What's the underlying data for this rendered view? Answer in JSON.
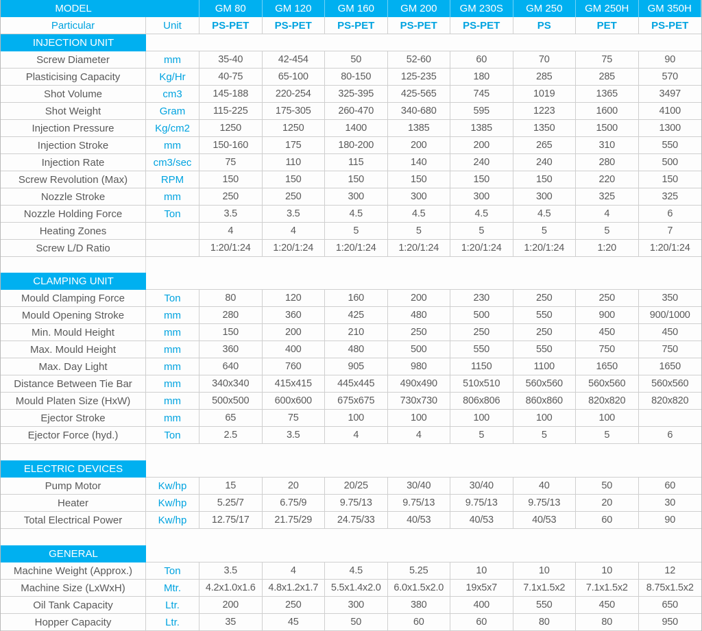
{
  "colors": {
    "accent_cyan": "#00b0f0",
    "cyan_text": "#00a3e0",
    "body_text": "#595959",
    "grid_line": "#cfcfcf"
  },
  "header": {
    "model_label": "MODEL",
    "models": [
      "GM 80",
      "GM 120",
      "GM 160",
      "GM 200",
      "GM 230S",
      "GM 250",
      "GM 250H",
      "GM 350H"
    ],
    "particular_label": "Particular",
    "unit_label": "Unit",
    "materials": [
      "PS-PET",
      "PS-PET",
      "PS-PET",
      "PS-PET",
      "PS-PET",
      "PS",
      "PET",
      "PS-PET"
    ]
  },
  "sections": [
    {
      "title": "INJECTION UNIT",
      "rows": [
        {
          "label": "Screw Diameter",
          "unit": "mm",
          "values": [
            "35-40",
            "42-454",
            "50",
            "52-60",
            "60",
            "70",
            "75",
            "90"
          ]
        },
        {
          "label": "Plasticising Capacity",
          "unit": "Kg/Hr",
          "values": [
            "40-75",
            "65-100",
            "80-150",
            "125-235",
            "180",
            "285",
            "285",
            "570"
          ]
        },
        {
          "label": "Shot Volume",
          "unit": "cm3",
          "values": [
            "145-188",
            "220-254",
            "325-395",
            "425-565",
            "745",
            "1019",
            "1365",
            "3497"
          ]
        },
        {
          "label": "Shot Weight",
          "unit": "Gram",
          "values": [
            "115-225",
            "175-305",
            "260-470",
            "340-680",
            "595",
            "1223",
            "1600",
            "4100"
          ]
        },
        {
          "label": "Injection Pressure",
          "unit": "Kg/cm2",
          "values": [
            "1250",
            "1250",
            "1400",
            "1385",
            "1385",
            "1350",
            "1500",
            "1300"
          ]
        },
        {
          "label": "Injection Stroke",
          "unit": "mm",
          "values": [
            "150-160",
            "175",
            "180-200",
            "200",
            "200",
            "265",
            "310",
            "550"
          ]
        },
        {
          "label": "Injection Rate",
          "unit": "cm3/sec",
          "values": [
            "75",
            "110",
            "115",
            "140",
            "240",
            "240",
            "280",
            "500"
          ]
        },
        {
          "label": "Screw Revolution (Max)",
          "unit": "RPM",
          "values": [
            "150",
            "150",
            "150",
            "150",
            "150",
            "150",
            "220",
            "150"
          ]
        },
        {
          "label": "Nozzle Stroke",
          "unit": "mm",
          "values": [
            "250",
            "250",
            "300",
            "300",
            "300",
            "300",
            "325",
            "325"
          ]
        },
        {
          "label": "Nozzle Holding Force",
          "unit": "Ton",
          "values": [
            "3.5",
            "3.5",
            "4.5",
            "4.5",
            "4.5",
            "4.5",
            "4",
            "6"
          ]
        },
        {
          "label": "Heating Zones",
          "unit": "",
          "values": [
            "4",
            "4",
            "5",
            "5",
            "5",
            "5",
            "5",
            "7"
          ]
        },
        {
          "label": "Screw L/D Ratio",
          "unit": "",
          "values": [
            "1:20/1:24",
            "1:20/1:24",
            "1:20/1:24",
            "1:20/1:24",
            "1:20/1:24",
            "1:20/1:24",
            "1:20",
            "1:20/1:24"
          ]
        }
      ]
    },
    {
      "title": "CLAMPING UNIT",
      "rows": [
        {
          "label": "Mould Clamping Force",
          "unit": "Ton",
          "values": [
            "80",
            "120",
            "160",
            "200",
            "230",
            "250",
            "250",
            "350"
          ]
        },
        {
          "label": "Mould Opening Stroke",
          "unit": "mm",
          "values": [
            "280",
            "360",
            "425",
            "480",
            "500",
            "550",
            "900",
            "900/1000"
          ]
        },
        {
          "label": "Min. Mould Height",
          "unit": "mm",
          "values": [
            "150",
            "200",
            "210",
            "250",
            "250",
            "250",
            "450",
            "450"
          ]
        },
        {
          "label": "Max. Mould Height",
          "unit": "mm",
          "values": [
            "360",
            "400",
            "480",
            "500",
            "550",
            "550",
            "750",
            "750"
          ]
        },
        {
          "label": "Max. Day Light",
          "unit": "mm",
          "values": [
            "640",
            "760",
            "905",
            "980",
            "1150",
            "1100",
            "1650",
            "1650"
          ]
        },
        {
          "label": "Distance Between Tie Bar",
          "unit": "mm",
          "values": [
            "340x340",
            "415x415",
            "445x445",
            "490x490",
            "510x510",
            "560x560",
            "560x560",
            "560x560"
          ]
        },
        {
          "label": "Mould Platen Size (HxW)",
          "unit": "mm",
          "values": [
            "500x500",
            "600x600",
            "675x675",
            "730x730",
            "806x806",
            "860x860",
            "820x820",
            "820x820"
          ]
        },
        {
          "label": "Ejector Stroke",
          "unit": "mm",
          "values": [
            "65",
            "75",
            "100",
            "100",
            "100",
            "100",
            "100",
            ""
          ]
        },
        {
          "label": "Ejector Force (hyd.)",
          "unit": "Ton",
          "values": [
            "2.5",
            "3.5",
            "4",
            "4",
            "5",
            "5",
            "5",
            "6"
          ]
        }
      ]
    },
    {
      "title": "ELECTRIC DEVICES",
      "rows": [
        {
          "label": "Pump Motor",
          "unit": "Kw/hp",
          "values": [
            "15",
            "20",
            "20/25",
            "30/40",
            "30/40",
            "40",
            "50",
            "60"
          ]
        },
        {
          "label": "Heater",
          "unit": "Kw/hp",
          "values": [
            "5.25/7",
            "6.75/9",
            "9.75/13",
            "9.75/13",
            "9.75/13",
            "9.75/13",
            "20",
            "30"
          ]
        },
        {
          "label": "Total Electrical Power",
          "unit": "Kw/hp",
          "values": [
            "12.75/17",
            "21.75/29",
            "24.75/33",
            "40/53",
            "40/53",
            "40/53",
            "60",
            "90"
          ]
        }
      ]
    },
    {
      "title": "GENERAL",
      "rows": [
        {
          "label": "Machine Weight (Approx.)",
          "unit": "Ton",
          "values": [
            "3.5",
            "4",
            "4.5",
            "5.25",
            "10",
            "10",
            "10",
            "12"
          ]
        },
        {
          "label": "Machine Size (LxWxH)",
          "unit": "Mtr.",
          "values": [
            "4.2x1.0x1.6",
            "4.8x1.2x1.7",
            "5.5x1.4x2.0",
            "6.0x1.5x2.0",
            "19x5x7",
            "7.1x1.5x2",
            "7.1x1.5x2",
            "8.75x1.5x2"
          ]
        },
        {
          "label": "Oil Tank Capacity",
          "unit": "Ltr.",
          "values": [
            "200",
            "250",
            "300",
            "380",
            "400",
            "550",
            "450",
            "650"
          ]
        },
        {
          "label": "Hopper Capacity",
          "unit": "Ltr.",
          "values": [
            "35",
            "45",
            "50",
            "60",
            "60",
            "80",
            "80",
            "950"
          ]
        }
      ]
    }
  ]
}
